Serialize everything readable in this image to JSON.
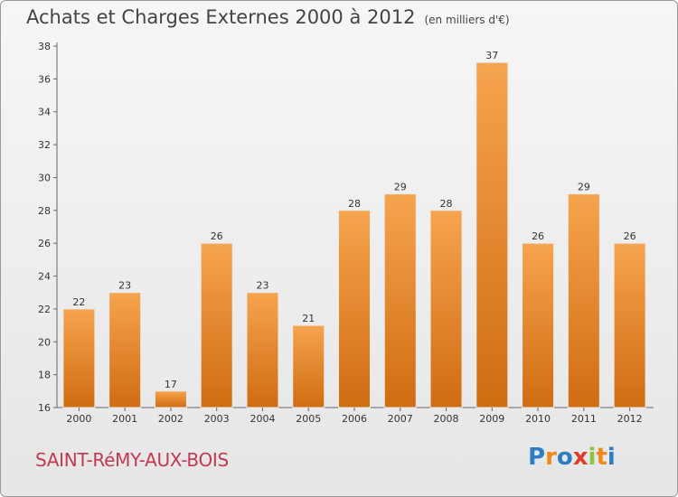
{
  "title": "Achats et Charges Externes 2000 à 2012",
  "unit": "(en milliers d'€)",
  "commune": "SAINT-RéMY-AUX-BOIS",
  "logo": {
    "letters": [
      "P",
      "r",
      "o",
      "x",
      "i",
      "t",
      "i"
    ],
    "colors": [
      "#2e7cc4",
      "#f08a1c",
      "#2e7cc4",
      "#e23b2e",
      "#8cc63f",
      "#f08a1c",
      "#2e7cc4"
    ]
  },
  "colors": {
    "bar_top": "#f6a44e",
    "bar_bottom": "#d06c12",
    "title": "#444444",
    "commune": "#c23a52"
  },
  "chart_data": {
    "type": "bar",
    "categories": [
      "2000",
      "2001",
      "2002",
      "2003",
      "2004",
      "2005",
      "2006",
      "2007",
      "2008",
      "2009",
      "2010",
      "2011",
      "2012"
    ],
    "values": [
      22,
      23,
      17,
      26,
      23,
      21,
      28,
      29,
      28,
      37,
      26,
      29,
      26
    ],
    "ylim": [
      16,
      38
    ],
    "yticks": [
      16,
      18,
      20,
      22,
      24,
      26,
      28,
      30,
      32,
      34,
      36,
      38
    ],
    "grid": false
  }
}
